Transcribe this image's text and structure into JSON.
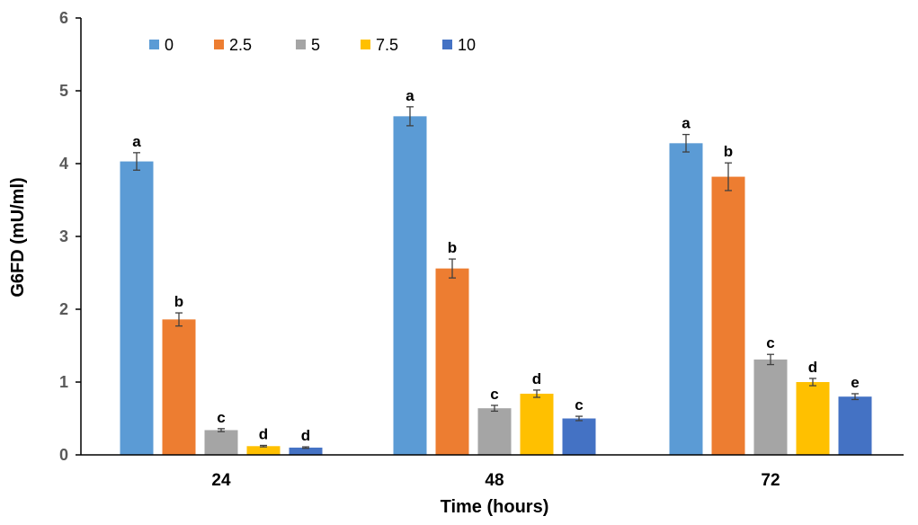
{
  "chart_data": {
    "type": "bar",
    "categories": [
      "24",
      "48",
      "72"
    ],
    "xlabel": "Time (hours)",
    "ylabel": "G6FD (mU/ml)",
    "ylim": [
      0,
      6
    ],
    "yticks": [
      "0",
      "1",
      "2",
      "3",
      "4",
      "5",
      "6"
    ],
    "grid": false,
    "legend_position": "top-left",
    "series": [
      {
        "name": "0",
        "color": "#5B9BD5",
        "values": [
          4.03,
          4.65,
          4.28
        ],
        "errors": [
          0.12,
          0.13,
          0.12
        ],
        "letters": [
          "a",
          "a",
          "a"
        ]
      },
      {
        "name": "2.5",
        "color": "#ED7D31",
        "values": [
          1.86,
          2.56,
          3.82
        ],
        "errors": [
          0.09,
          0.13,
          0.19
        ],
        "letters": [
          "b",
          "b",
          "b"
        ]
      },
      {
        "name": "5",
        "color": "#A5A5A5",
        "values": [
          0.34,
          0.64,
          1.31
        ],
        "errors": [
          0.02,
          0.04,
          0.07
        ],
        "letters": [
          "c",
          "c",
          "c"
        ]
      },
      {
        "name": "7.5",
        "color": "#FFC000",
        "values": [
          0.12,
          0.84,
          1.0
        ],
        "errors": [
          0.01,
          0.05,
          0.05
        ],
        "letters": [
          "d",
          "d",
          "d"
        ]
      },
      {
        "name": "10",
        "color": "#4472C4",
        "values": [
          0.1,
          0.5,
          0.8
        ],
        "errors": [
          0.01,
          0.03,
          0.04
        ],
        "letters": [
          "d",
          "c",
          "e"
        ]
      }
    ]
  }
}
